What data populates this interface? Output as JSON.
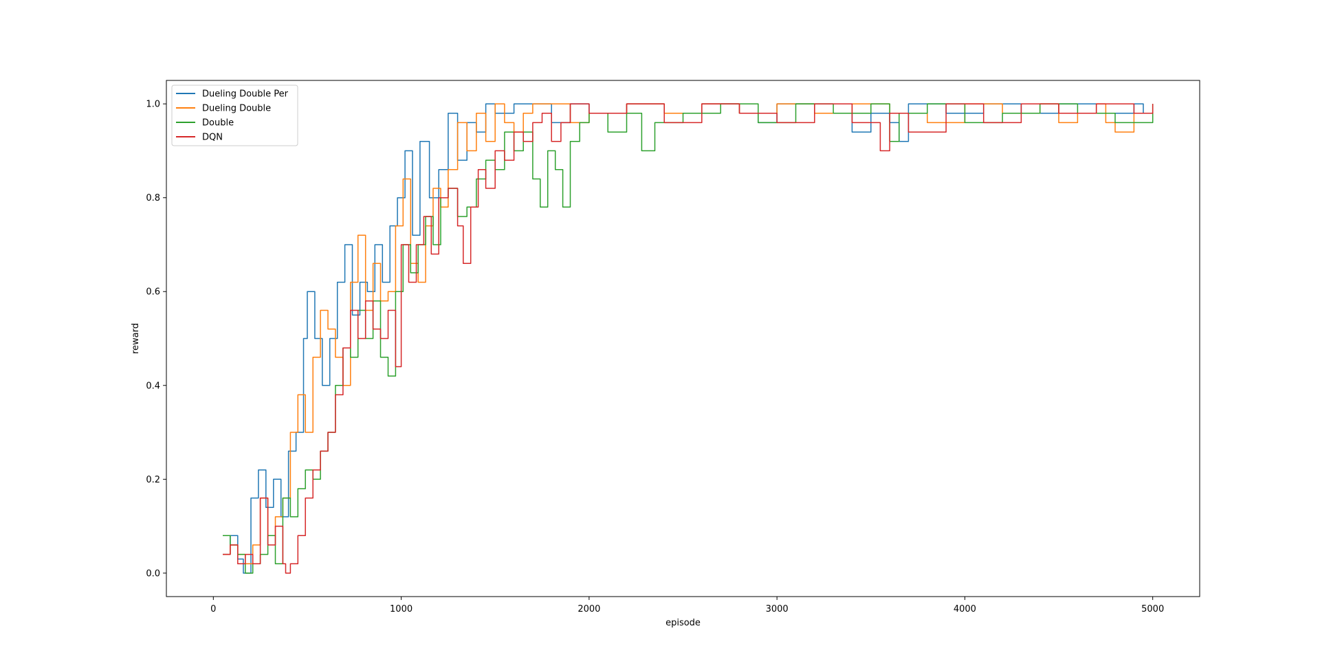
{
  "chart_data": {
    "type": "line",
    "title": "",
    "xlabel": "episode",
    "ylabel": "reward",
    "xlim": [
      -250,
      5250
    ],
    "ylim": [
      -0.05,
      1.05
    ],
    "xticks": [
      0,
      1000,
      2000,
      3000,
      4000,
      5000
    ],
    "xtick_labels": [
      "0",
      "1000",
      "2000",
      "3000",
      "4000",
      "5000"
    ],
    "yticks": [
      0.0,
      0.2,
      0.4,
      0.6,
      0.8,
      1.0
    ],
    "ytick_labels": [
      "0.0",
      "0.2",
      "0.4",
      "0.6",
      "0.8",
      "1.0"
    ],
    "grid": false,
    "legend_position": "top-left",
    "series": [
      {
        "name": "Dueling Double Per",
        "color": "#1f77b4",
        "x": [
          50,
          90,
          130,
          160,
          200,
          240,
          280,
          320,
          360,
          400,
          440,
          480,
          500,
          540,
          580,
          620,
          660,
          700,
          740,
          780,
          820,
          860,
          900,
          940,
          980,
          1020,
          1060,
          1100,
          1150,
          1200,
          1250,
          1300,
          1350,
          1400,
          1450,
          1500,
          1600,
          1700,
          1800,
          1900,
          2000,
          2200,
          2400,
          2600,
          2800,
          2900,
          3000,
          3200,
          3400,
          3500,
          3600,
          3650,
          3700,
          3900,
          4100,
          4300,
          4500,
          4700,
          4900,
          4950,
          5000
        ],
        "y": [
          0.04,
          0.08,
          0.03,
          0.0,
          0.16,
          0.22,
          0.14,
          0.2,
          0.12,
          0.26,
          0.3,
          0.5,
          0.6,
          0.5,
          0.4,
          0.5,
          0.62,
          0.7,
          0.55,
          0.62,
          0.6,
          0.7,
          0.62,
          0.74,
          0.8,
          0.9,
          0.72,
          0.92,
          0.8,
          0.86,
          0.98,
          0.88,
          0.96,
          0.94,
          1.0,
          0.98,
          1.0,
          1.0,
          0.96,
          1.0,
          0.98,
          1.0,
          0.98,
          1.0,
          0.98,
          0.96,
          1.0,
          0.98,
          0.94,
          0.98,
          0.96,
          0.92,
          1.0,
          0.98,
          1.0,
          0.98,
          1.0,
          0.98,
          1.0,
          0.98,
          0.98
        ]
      },
      {
        "name": "Dueling Double",
        "color": "#ff7f0e",
        "x": [
          50,
          90,
          130,
          170,
          210,
          250,
          290,
          330,
          370,
          410,
          450,
          490,
          530,
          570,
          610,
          650,
          690,
          730,
          770,
          810,
          850,
          890,
          930,
          970,
          1010,
          1050,
          1090,
          1130,
          1170,
          1210,
          1250,
          1300,
          1350,
          1400,
          1450,
          1500,
          1550,
          1600,
          1650,
          1700,
          1800,
          1900,
          2000,
          2200,
          2400,
          2600,
          2800,
          3000,
          3200,
          3400,
          3600,
          3800,
          4000,
          4200,
          4400,
          4500,
          4600,
          4700,
          4750,
          4800,
          4900,
          5000
        ],
        "y": [
          0.04,
          0.06,
          0.04,
          0.02,
          0.06,
          0.16,
          0.08,
          0.12,
          0.16,
          0.3,
          0.38,
          0.3,
          0.46,
          0.56,
          0.52,
          0.46,
          0.4,
          0.62,
          0.72,
          0.56,
          0.66,
          0.58,
          0.6,
          0.74,
          0.84,
          0.66,
          0.62,
          0.74,
          0.82,
          0.78,
          0.86,
          0.96,
          0.9,
          0.98,
          0.92,
          1.0,
          0.96,
          0.94,
          0.98,
          1.0,
          1.0,
          0.96,
          0.98,
          1.0,
          0.98,
          1.0,
          0.98,
          1.0,
          0.98,
          1.0,
          0.98,
          0.96,
          1.0,
          0.98,
          1.0,
          0.96,
          0.98,
          1.0,
          0.96,
          0.94,
          0.98,
          1.0
        ]
      },
      {
        "name": "Double",
        "color": "#2ca02c",
        "x": [
          50,
          90,
          130,
          170,
          210,
          250,
          290,
          330,
          370,
          410,
          450,
          490,
          530,
          570,
          610,
          650,
          690,
          730,
          770,
          810,
          850,
          890,
          930,
          970,
          1010,
          1050,
          1090,
          1130,
          1170,
          1210,
          1250,
          1300,
          1350,
          1400,
          1450,
          1500,
          1550,
          1600,
          1650,
          1700,
          1740,
          1780,
          1820,
          1860,
          1900,
          1950,
          2000,
          2100,
          2200,
          2280,
          2350,
          2500,
          2700,
          2900,
          3100,
          3300,
          3500,
          3600,
          3650,
          3800,
          4000,
          4200,
          4400,
          4600,
          4800,
          5000
        ],
        "y": [
          0.08,
          0.06,
          0.04,
          0.0,
          0.02,
          0.04,
          0.08,
          0.02,
          0.16,
          0.12,
          0.18,
          0.22,
          0.2,
          0.26,
          0.3,
          0.4,
          0.48,
          0.46,
          0.56,
          0.5,
          0.58,
          0.46,
          0.42,
          0.6,
          0.7,
          0.64,
          0.7,
          0.76,
          0.7,
          0.8,
          0.82,
          0.76,
          0.78,
          0.84,
          0.88,
          0.86,
          0.94,
          0.9,
          0.94,
          0.84,
          0.78,
          0.9,
          0.86,
          0.78,
          0.92,
          0.96,
          0.98,
          0.94,
          0.98,
          0.9,
          0.96,
          0.98,
          1.0,
          0.96,
          1.0,
          0.98,
          1.0,
          0.92,
          0.98,
          1.0,
          0.96,
          0.98,
          1.0,
          0.98,
          0.96,
          1.0
        ]
      },
      {
        "name": "DQN",
        "color": "#d62728",
        "x": [
          50,
          90,
          130,
          170,
          210,
          250,
          290,
          330,
          370,
          385,
          410,
          450,
          490,
          530,
          570,
          610,
          650,
          690,
          730,
          770,
          810,
          850,
          890,
          930,
          970,
          1000,
          1040,
          1080,
          1120,
          1160,
          1200,
          1250,
          1300,
          1330,
          1370,
          1410,
          1450,
          1500,
          1550,
          1600,
          1650,
          1700,
          1750,
          1800,
          1850,
          1900,
          2000,
          2200,
          2400,
          2600,
          2800,
          3000,
          3200,
          3400,
          3550,
          3600,
          3700,
          3900,
          4100,
          4300,
          4500,
          4700,
          4900,
          5000
        ],
        "y": [
          0.04,
          0.06,
          0.02,
          0.04,
          0.02,
          0.16,
          0.06,
          0.1,
          0.02,
          0.0,
          0.02,
          0.08,
          0.16,
          0.22,
          0.26,
          0.3,
          0.38,
          0.48,
          0.56,
          0.5,
          0.58,
          0.52,
          0.5,
          0.56,
          0.44,
          0.7,
          0.62,
          0.7,
          0.76,
          0.68,
          0.8,
          0.82,
          0.74,
          0.66,
          0.78,
          0.86,
          0.82,
          0.9,
          0.88,
          0.94,
          0.92,
          0.96,
          0.98,
          0.92,
          0.96,
          1.0,
          0.98,
          1.0,
          0.96,
          1.0,
          0.98,
          0.96,
          1.0,
          0.96,
          0.9,
          0.98,
          0.94,
          1.0,
          0.96,
          1.0,
          0.98,
          1.0,
          0.98,
          1.0
        ]
      }
    ]
  }
}
